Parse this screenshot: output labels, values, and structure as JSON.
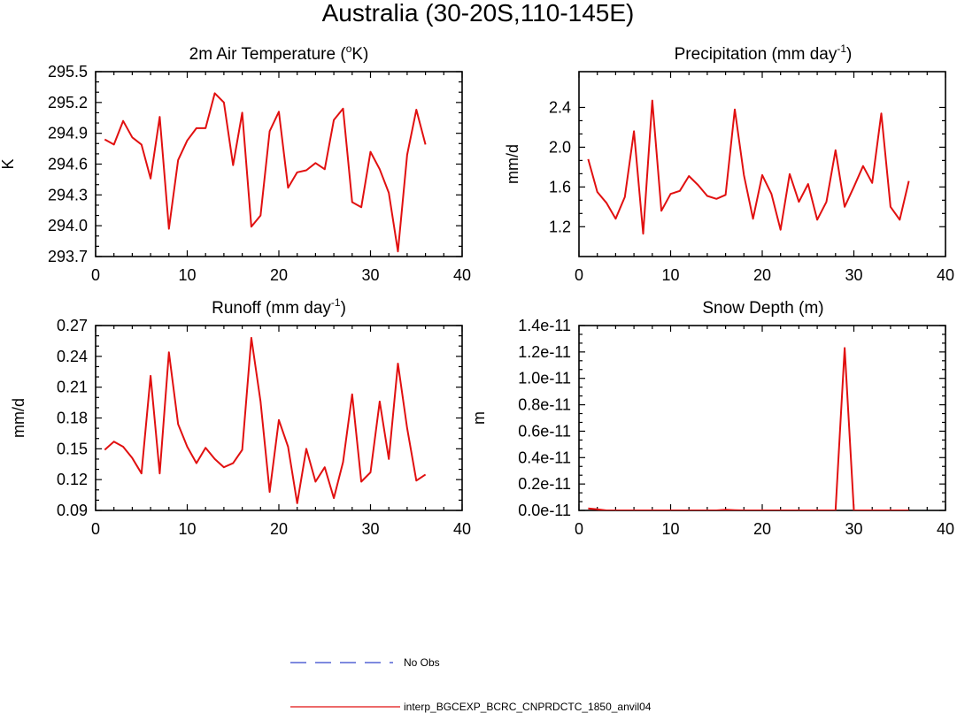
{
  "figure_title": "Australia (30-20S,110-145E)",
  "legend": [
    {
      "label": "No Obs",
      "color": "#3344cc",
      "dash": true
    },
    {
      "label": "interp_BGCEXP_BCRC_CNPRDCTC_1850_anvil04",
      "color": "#e11010",
      "dash": false
    }
  ],
  "chart_data": [
    {
      "type": "line",
      "title": "2m Air Temperature (",
      "title_sup": "o",
      "title_after": "K)",
      "xlabel": "",
      "ylabel": "K",
      "xlim": [
        0,
        40
      ],
      "ylim": [
        293.7,
        295.5
      ],
      "xticks": [
        0,
        10,
        20,
        30,
        40
      ],
      "yticks": [
        293.7,
        294.0,
        294.3,
        294.6,
        294.9,
        295.2,
        295.5
      ],
      "ytick_labels": [
        "293.7",
        "294.0",
        "294.3",
        "294.6",
        "294.9",
        "295.2",
        "295.5"
      ],
      "series": [
        {
          "name": "interp_BGCEXP_BCRC_CNPRDCTC_1850_anvil04",
          "color": "#e11010",
          "x": [
            1,
            2,
            3,
            4,
            5,
            6,
            7,
            8,
            9,
            10,
            11,
            12,
            13,
            14,
            15,
            16,
            17,
            18,
            19,
            20,
            21,
            22,
            23,
            24,
            25,
            26,
            27,
            28,
            29,
            30,
            31,
            32,
            33,
            34,
            35,
            36
          ],
          "values": [
            294.84,
            294.79,
            295.02,
            294.86,
            294.79,
            294.46,
            295.06,
            293.97,
            294.64,
            294.83,
            294.95,
            294.95,
            295.29,
            295.2,
            294.59,
            295.1,
            293.99,
            294.1,
            294.92,
            295.11,
            294.37,
            294.52,
            294.54,
            294.61,
            294.55,
            295.03,
            295.14,
            294.23,
            294.18,
            294.72,
            294.55,
            294.32,
            293.75,
            294.69,
            295.13,
            294.79
          ]
        }
      ]
    },
    {
      "type": "line",
      "title": "Precipitation (mm day",
      "title_sup": "-1",
      "title_after": ")",
      "xlabel": "",
      "ylabel": "mm/d",
      "xlim": [
        0,
        40
      ],
      "ylim": [
        0.9,
        2.76
      ],
      "xticks": [
        0,
        10,
        20,
        30,
        40
      ],
      "yticks": [
        1.2,
        1.6,
        2.0,
        2.4
      ],
      "ytick_labels": [
        "1.2",
        "1.6",
        "2.0",
        "2.4"
      ],
      "series": [
        {
          "name": "interp_BGCEXP_BCRC_CNPRDCTC_1850_anvil04",
          "color": "#e11010",
          "x": [
            1,
            2,
            3,
            4,
            5,
            6,
            7,
            8,
            9,
            10,
            11,
            12,
            13,
            14,
            15,
            16,
            17,
            18,
            19,
            20,
            21,
            22,
            23,
            24,
            25,
            26,
            27,
            28,
            29,
            30,
            31,
            32,
            33,
            34,
            35,
            36
          ],
          "values": [
            1.88,
            1.55,
            1.44,
            1.28,
            1.5,
            2.16,
            1.13,
            2.47,
            1.36,
            1.53,
            1.56,
            1.71,
            1.62,
            1.51,
            1.48,
            1.52,
            2.38,
            1.72,
            1.28,
            1.72,
            1.53,
            1.17,
            1.73,
            1.45,
            1.63,
            1.27,
            1.45,
            1.97,
            1.4,
            1.6,
            1.81,
            1.64,
            2.34,
            1.4,
            1.27,
            1.66
          ]
        }
      ]
    },
    {
      "type": "line",
      "title": "Runoff (mm day",
      "title_sup": "-1",
      "title_after": ")",
      "xlabel": "",
      "ylabel": "mm/d",
      "xlim": [
        0,
        40
      ],
      "ylim": [
        0.09,
        0.27
      ],
      "xticks": [
        0,
        10,
        20,
        30,
        40
      ],
      "yticks": [
        0.09,
        0.12,
        0.15,
        0.18,
        0.21,
        0.24,
        0.27
      ],
      "ytick_labels": [
        "0.09",
        "0.12",
        "0.15",
        "0.18",
        "0.21",
        "0.24",
        "0.27"
      ],
      "series": [
        {
          "name": "interp_BGCEXP_BCRC_CNPRDCTC_1850_anvil04",
          "color": "#e11010",
          "x": [
            1,
            2,
            3,
            4,
            5,
            6,
            7,
            8,
            9,
            10,
            11,
            12,
            13,
            14,
            15,
            16,
            17,
            18,
            19,
            20,
            21,
            22,
            23,
            24,
            25,
            26,
            27,
            28,
            29,
            30,
            31,
            32,
            33,
            34,
            35,
            36
          ],
          "values": [
            0.149,
            0.157,
            0.152,
            0.141,
            0.126,
            0.221,
            0.126,
            0.244,
            0.174,
            0.152,
            0.136,
            0.151,
            0.14,
            0.132,
            0.136,
            0.149,
            0.258,
            0.196,
            0.108,
            0.178,
            0.152,
            0.097,
            0.15,
            0.118,
            0.132,
            0.102,
            0.137,
            0.203,
            0.118,
            0.127,
            0.196,
            0.14,
            0.233,
            0.17,
            0.119,
            0.125
          ]
        }
      ]
    },
    {
      "type": "line",
      "title": "Snow Depth (m)",
      "title_sup": "",
      "title_after": "",
      "xlabel": "",
      "ylabel": "m",
      "xlim": [
        0,
        40
      ],
      "ylim": [
        0,
        1.4e-11
      ],
      "xticks": [
        0,
        10,
        20,
        30,
        40
      ],
      "yticks": [
        0,
        2e-12,
        4e-12,
        6e-12,
        8e-12,
        1e-11,
        1.2e-11,
        1.4e-11
      ],
      "ytick_labels": [
        "0.0e-11",
        "0.2e-11",
        "0.4e-11",
        "0.6e-11",
        "0.8e-11",
        "1.0e-11",
        "1.2e-11",
        "1.4e-11"
      ],
      "series": [
        {
          "name": "interp_BGCEXP_BCRC_CNPRDCTC_1850_anvil04",
          "color": "#e11010",
          "x": [
            1,
            2,
            3,
            4,
            5,
            6,
            7,
            8,
            9,
            10,
            11,
            12,
            13,
            14,
            15,
            16,
            17,
            18,
            19,
            20,
            21,
            22,
            23,
            24,
            25,
            26,
            27,
            28,
            29,
            30,
            31,
            32,
            33,
            34,
            35,
            36
          ],
          "values": [
            1.5e-13,
            8e-14,
            0,
            0,
            0,
            0,
            0,
            0,
            0,
            0,
            0,
            0,
            0,
            0,
            0,
            5e-14,
            2e-14,
            0,
            0,
            0,
            0,
            0,
            0,
            0,
            0,
            0,
            0,
            0,
            1.23e-11,
            0,
            0,
            0,
            0,
            0,
            0,
            0
          ]
        }
      ]
    }
  ]
}
